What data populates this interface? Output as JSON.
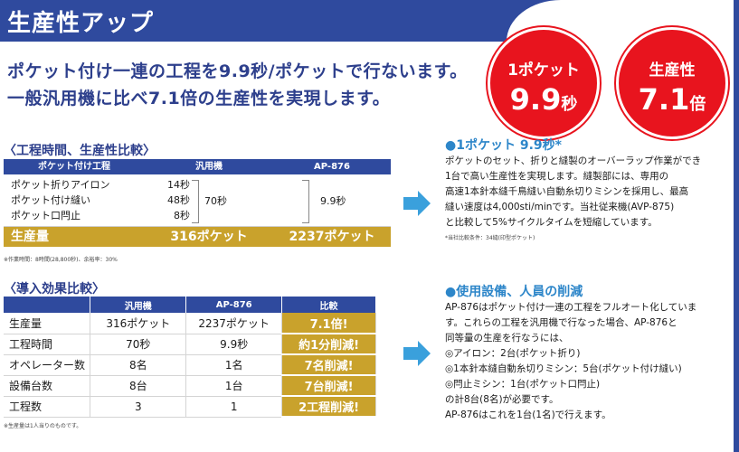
{
  "header": {
    "title": "生産性アップ"
  },
  "lead": [
    "ポケット付け一連の工程を9.9秒/ポケットで行ないます。",
    "一般汎用機に比べ7.1倍の生産性を実現します。"
  ],
  "badges": [
    {
      "top": "1ポケット",
      "value": "9.9",
      "unit": "秒"
    },
    {
      "top": "生産性",
      "value": "7.1",
      "unit": "倍"
    }
  ],
  "colors": {
    "navy": "#2f4a9e",
    "gold": "#c9a22c",
    "red": "#e8141e",
    "arrow": "#3aa0dc",
    "accent_blue": "#2d86c9"
  },
  "section1": {
    "title": "〈工程時間、生産性比較〉",
    "headers": [
      "ポケット付け工程",
      "汎用機",
      "AP-876"
    ],
    "steps": [
      "ポケット折りアイロン",
      "ポケット付け縫い",
      "ポケット口閂止"
    ],
    "times": [
      "14秒",
      "48秒",
      "8秒"
    ],
    "total_general": "70秒",
    "total_ap": "9.9秒",
    "footer": [
      "生産量",
      "316ポケット",
      "2237ポケット"
    ],
    "note": "※作業時間：8時間(28,800秒)、余裕率：30%"
  },
  "section2": {
    "title": "〈導入効果比較〉",
    "headers": [
      "",
      "汎用機",
      "AP-876",
      "比較"
    ],
    "rows": [
      {
        "label": "生産量",
        "general": "316ポケット",
        "ap": "2237ポケット",
        "compare": "7.1倍!"
      },
      {
        "label": "工程時間",
        "general": "70秒",
        "ap": "9.9秒",
        "compare": "約1分削減!"
      },
      {
        "label": "オペレーター数",
        "general": "8名",
        "ap": "1名",
        "compare": "7名削減!"
      },
      {
        "label": "設備台数",
        "general": "8台",
        "ap": "1台",
        "compare": "7台削減!"
      },
      {
        "label": "工程数",
        "general": "3",
        "ap": "1",
        "compare": "2工程削減!"
      }
    ],
    "note": "※生産量は1人当りのものです。"
  },
  "right1": {
    "title": "●1ポケット 9.9秒*",
    "lines": [
      "ポケットのセット、折りと縫製のオーバーラップ作業ができ",
      "1台で高い生産性を実現します。縫製部には、専用の",
      "高速1本針本縫千鳥縫い自動糸切りミシンを採用し、最高",
      "縫い速度は4,000sti/minです。当社従来機(AVP-875)",
      "と比較して5%サイクルタイムを短縮しています。"
    ],
    "note": "*当社比較条件：34縫(印型ポケット)"
  },
  "right2": {
    "title": "●使用設備、人員の削減",
    "lines": [
      "AP-876はポケット付け一連の工程をフルオート化していま",
      "す。これらの工程を汎用機で行なった場合、AP-876と",
      "同等量の生産を行なうには、",
      "◎アイロン：2台(ポケット折り)",
      "◎1本針本縫自動糸切りミシン：5台(ポケット付け縫い)",
      "◎閂止ミシン：1台(ポケット口閂止)",
      "の計8台(8名)が必要です。",
      "AP-876はこれを1台(1名)で行えます。"
    ]
  }
}
